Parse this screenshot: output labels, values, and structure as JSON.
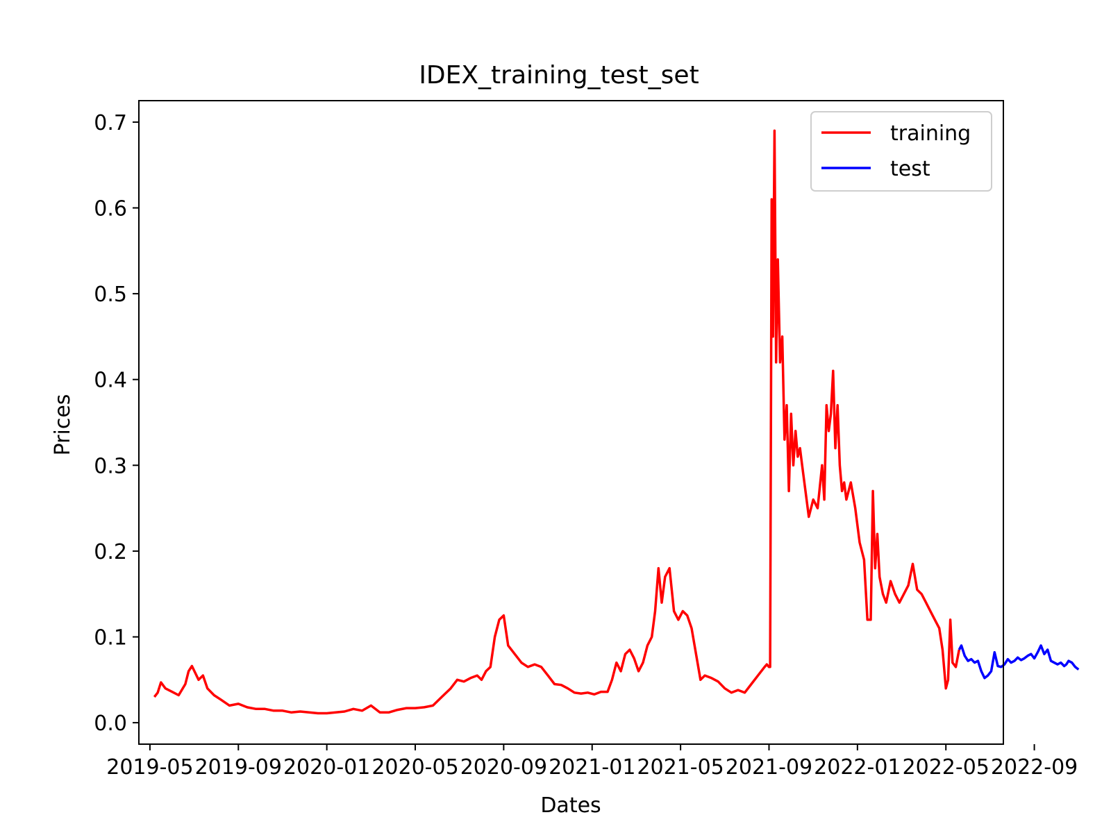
{
  "chart_data": {
    "type": "line",
    "title": "IDEX_training_test_set",
    "xlabel": "Dates",
    "ylabel": "Prices",
    "x_start": "2019-05",
    "x_end": "2022-09",
    "xlim_months": [
      -0.5,
      38.6
    ],
    "ylim": [
      -0.025,
      0.725
    ],
    "x_ticks": [
      {
        "label": "2019-05",
        "month": 0
      },
      {
        "label": "2019-09",
        "month": 4
      },
      {
        "label": "2020-01",
        "month": 8
      },
      {
        "label": "2020-05",
        "month": 12
      },
      {
        "label": "2020-09",
        "month": 16
      },
      {
        "label": "2021-01",
        "month": 20
      },
      {
        "label": "2021-05",
        "month": 24
      },
      {
        "label": "2021-09",
        "month": 28
      },
      {
        "label": "2022-01",
        "month": 32
      },
      {
        "label": "2022-05",
        "month": 36
      },
      {
        "label": "2022-09",
        "month": 40
      }
    ],
    "y_ticks": [
      {
        "label": "0.0",
        "value": 0.0
      },
      {
        "label": "0.1",
        "value": 0.1
      },
      {
        "label": "0.2",
        "value": 0.2
      },
      {
        "label": "0.3",
        "value": 0.3
      },
      {
        "label": "0.4",
        "value": 0.4
      },
      {
        "label": "0.5",
        "value": 0.5
      },
      {
        "label": "0.6",
        "value": 0.6
      },
      {
        "label": "0.7",
        "value": 0.7
      }
    ],
    "legend_position": "upper-right",
    "series": [
      {
        "name": "training",
        "color": "#ff0000",
        "x": [
          0.2,
          0.35,
          0.5,
          0.7,
          1.0,
          1.3,
          1.6,
          1.75,
          1.9,
          2.05,
          2.2,
          2.4,
          2.6,
          2.9,
          3.2,
          3.6,
          4.0,
          4.4,
          4.8,
          5.2,
          5.6,
          6.0,
          6.4,
          6.8,
          7.2,
          7.6,
          8.0,
          8.4,
          8.8,
          9.2,
          9.6,
          10.0,
          10.4,
          10.8,
          11.2,
          11.6,
          12.0,
          12.4,
          12.8,
          13.2,
          13.6,
          13.9,
          14.2,
          14.5,
          14.8,
          15.0,
          15.2,
          15.4,
          15.6,
          15.8,
          16.0,
          16.2,
          16.5,
          16.8,
          17.1,
          17.4,
          17.7,
          18.0,
          18.3,
          18.6,
          18.9,
          19.2,
          19.5,
          19.8,
          20.1,
          20.4,
          20.7,
          20.9,
          21.1,
          21.3,
          21.5,
          21.7,
          21.9,
          22.1,
          22.3,
          22.5,
          22.7,
          22.85,
          23.0,
          23.15,
          23.3,
          23.5,
          23.7,
          23.9,
          24.1,
          24.3,
          24.5,
          24.7,
          24.9,
          25.1,
          25.4,
          25.7,
          26.0,
          26.3,
          26.6,
          26.9,
          27.2,
          27.5,
          27.8,
          27.9,
          28.0,
          28.05,
          28.12,
          28.18,
          28.25,
          28.32,
          28.4,
          28.5,
          28.6,
          28.7,
          28.8,
          28.9,
          29.0,
          29.1,
          29.2,
          29.3,
          29.4,
          29.5,
          29.6,
          29.8,
          30.0,
          30.2,
          30.4,
          30.5,
          30.6,
          30.7,
          30.8,
          30.9,
          31.0,
          31.1,
          31.2,
          31.3,
          31.4,
          31.5,
          31.7,
          31.9,
          32.1,
          32.3,
          32.45,
          32.6,
          32.7,
          32.8,
          32.9,
          33.0,
          33.15,
          33.3,
          33.5,
          33.7,
          33.9,
          34.1,
          34.3,
          34.5,
          34.7,
          34.9,
          35.1,
          35.3,
          35.5,
          35.7,
          35.85,
          36.0,
          36.1,
          36.2,
          36.3,
          36.45,
          36.6
        ],
        "y": [
          0.03,
          0.035,
          0.047,
          0.04,
          0.036,
          0.032,
          0.045,
          0.06,
          0.066,
          0.058,
          0.05,
          0.055,
          0.04,
          0.032,
          0.027,
          0.02,
          0.022,
          0.018,
          0.016,
          0.016,
          0.014,
          0.014,
          0.012,
          0.013,
          0.012,
          0.011,
          0.011,
          0.012,
          0.013,
          0.016,
          0.014,
          0.02,
          0.012,
          0.012,
          0.015,
          0.017,
          0.017,
          0.018,
          0.02,
          0.03,
          0.04,
          0.05,
          0.048,
          0.052,
          0.055,
          0.05,
          0.06,
          0.065,
          0.1,
          0.12,
          0.125,
          0.09,
          0.08,
          0.07,
          0.065,
          0.068,
          0.065,
          0.055,
          0.045,
          0.044,
          0.04,
          0.035,
          0.034,
          0.035,
          0.033,
          0.036,
          0.036,
          0.05,
          0.07,
          0.06,
          0.08,
          0.085,
          0.075,
          0.06,
          0.07,
          0.09,
          0.1,
          0.13,
          0.18,
          0.14,
          0.17,
          0.18,
          0.13,
          0.12,
          0.13,
          0.125,
          0.11,
          0.08,
          0.05,
          0.055,
          0.052,
          0.048,
          0.04,
          0.035,
          0.038,
          0.035,
          0.045,
          0.055,
          0.065,
          0.068,
          0.065,
          0.065,
          0.61,
          0.45,
          0.69,
          0.42,
          0.54,
          0.42,
          0.45,
          0.33,
          0.37,
          0.27,
          0.36,
          0.3,
          0.34,
          0.31,
          0.32,
          0.3,
          0.28,
          0.24,
          0.26,
          0.25,
          0.3,
          0.26,
          0.37,
          0.34,
          0.36,
          0.41,
          0.32,
          0.37,
          0.3,
          0.27,
          0.28,
          0.26,
          0.28,
          0.25,
          0.21,
          0.19,
          0.12,
          0.12,
          0.27,
          0.18,
          0.22,
          0.17,
          0.15,
          0.14,
          0.165,
          0.15,
          0.14,
          0.15,
          0.16,
          0.185,
          0.155,
          0.15,
          0.14,
          0.13,
          0.12,
          0.11,
          0.085,
          0.04,
          0.05,
          0.12,
          0.07,
          0.065,
          0.085
        ]
      },
      {
        "name": "test",
        "color": "#0000ff",
        "x": [
          36.6,
          36.7,
          36.85,
          37.0,
          37.15,
          37.3,
          37.45,
          37.6,
          37.75,
          37.9,
          38.05,
          38.2,
          38.35,
          38.5,
          38.65,
          38.8,
          38.95,
          39.1,
          39.25,
          39.4,
          39.55,
          39.7,
          39.85,
          40.0,
          40.15,
          40.3,
          40.45,
          40.6,
          40.75,
          40.9,
          41.05,
          41.2,
          41.35,
          41.45,
          41.55,
          41.7,
          41.85,
          42.0
        ],
        "y": [
          0.085,
          0.09,
          0.078,
          0.072,
          0.074,
          0.07,
          0.072,
          0.06,
          0.052,
          0.055,
          0.06,
          0.082,
          0.066,
          0.065,
          0.068,
          0.074,
          0.07,
          0.072,
          0.076,
          0.073,
          0.075,
          0.078,
          0.08,
          0.075,
          0.082,
          0.09,
          0.08,
          0.085,
          0.072,
          0.07,
          0.068,
          0.07,
          0.066,
          0.068,
          0.072,
          0.07,
          0.065,
          0.062
        ]
      }
    ]
  }
}
